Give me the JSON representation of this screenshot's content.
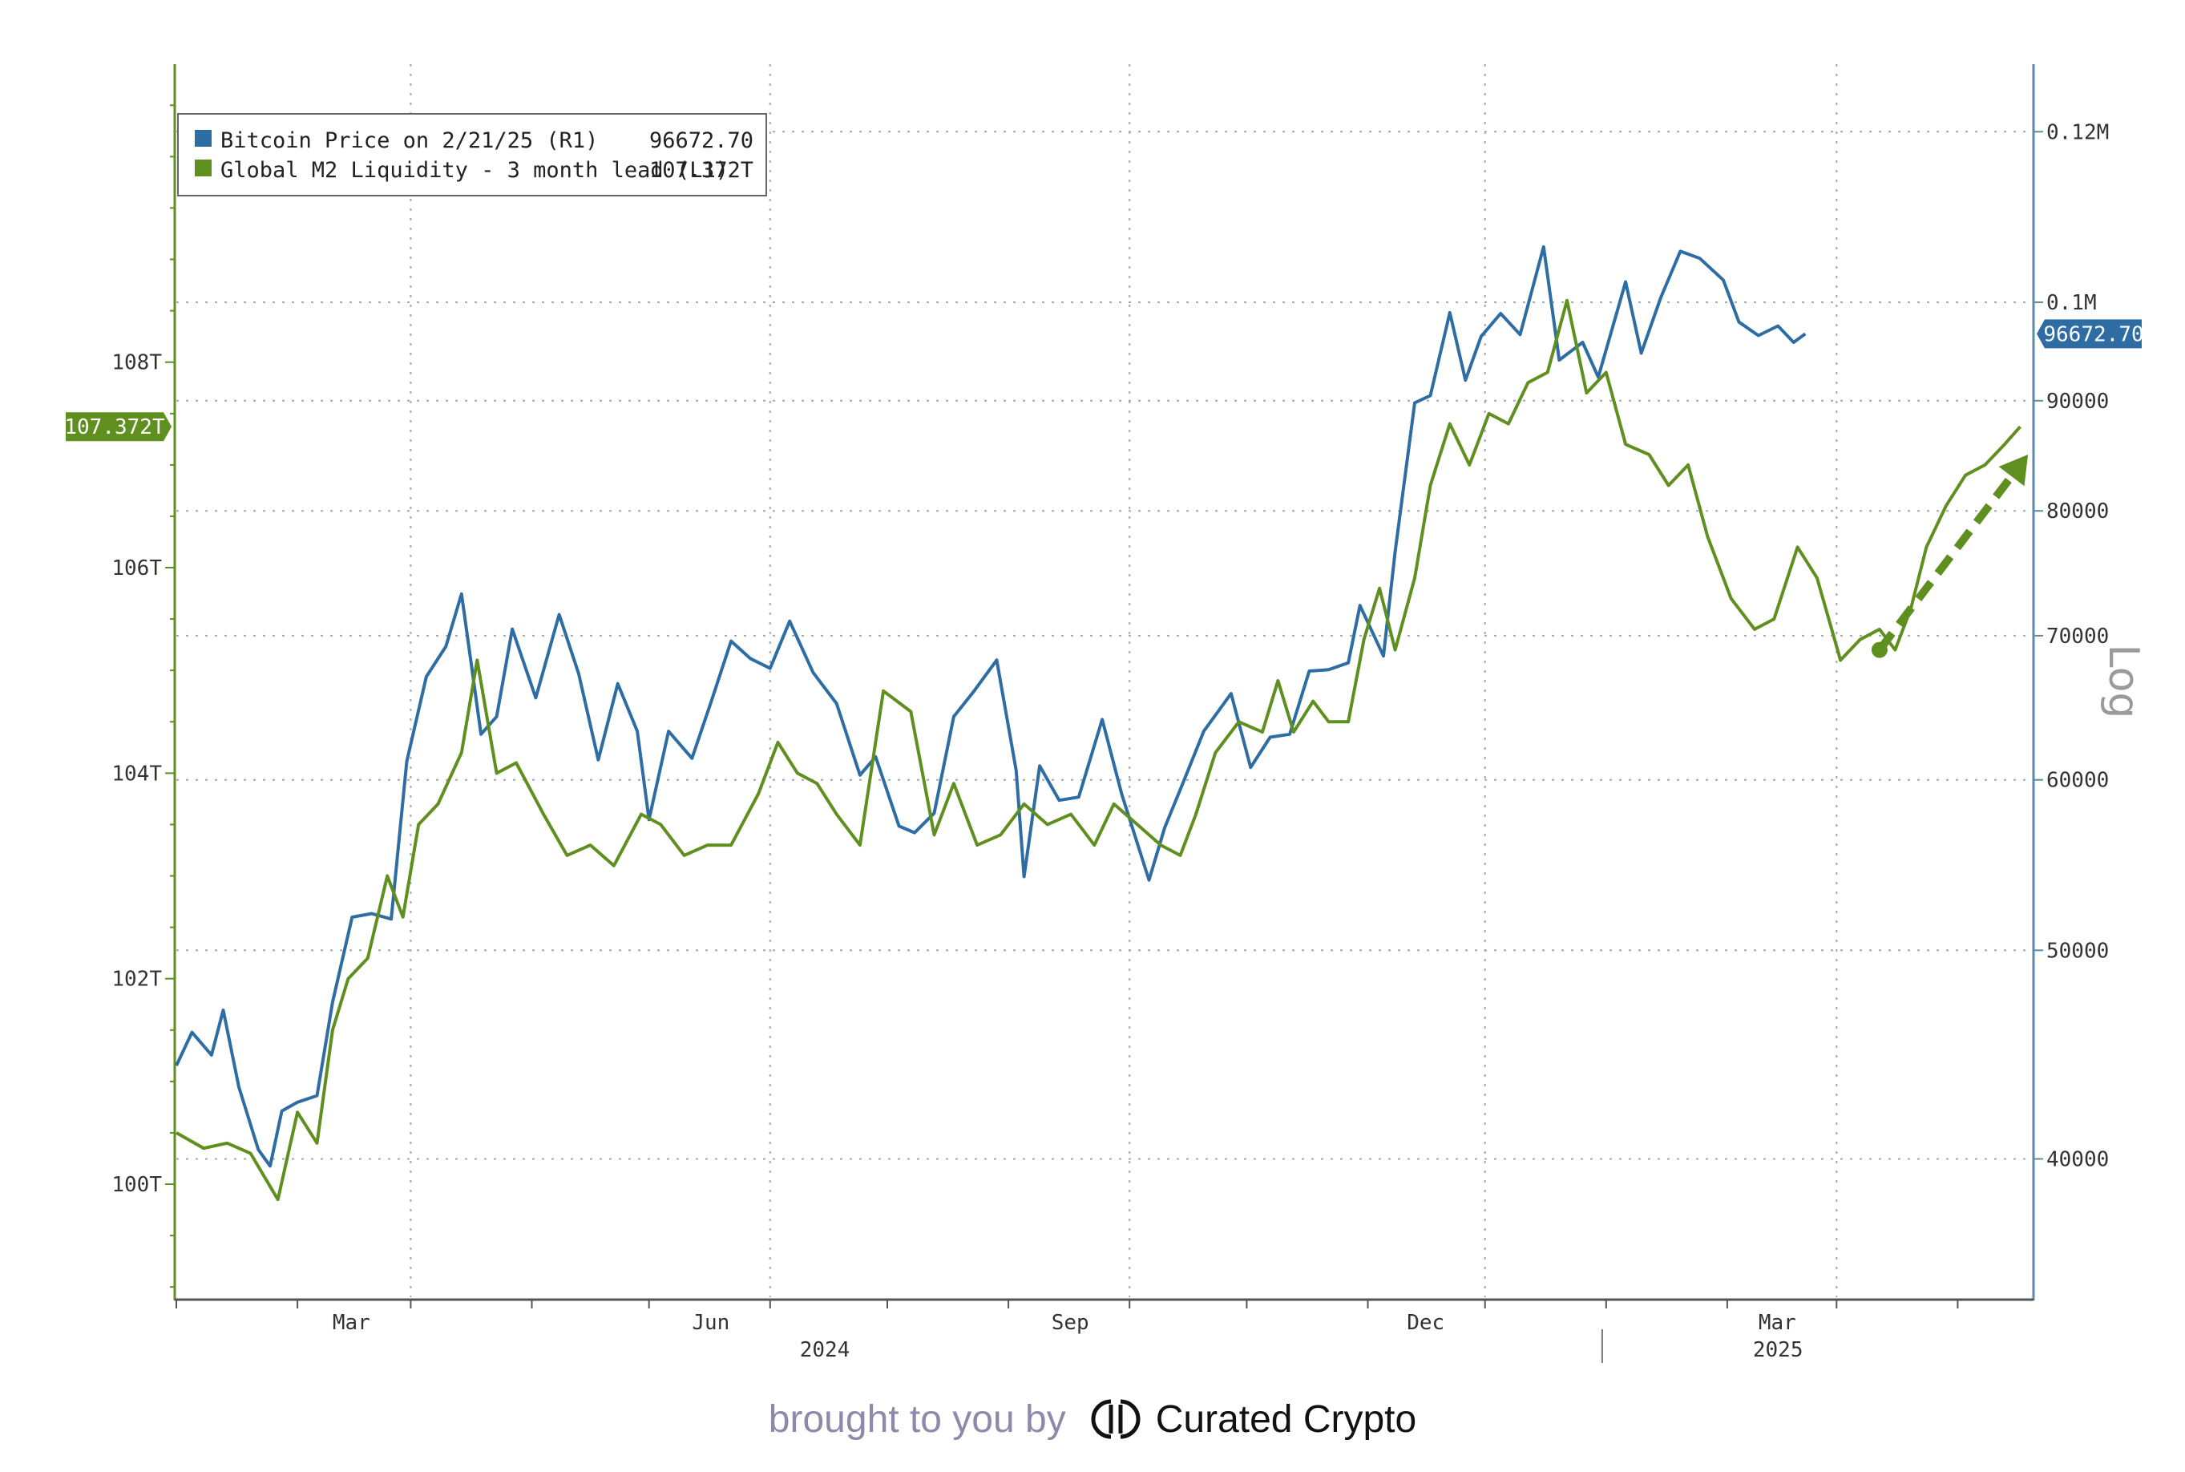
{
  "chart_data": {
    "type": "line",
    "scale_right": "log",
    "grid": true,
    "legend_position": "top-left",
    "legend": [
      {
        "label": "Bitcoin Price on 2/21/25 (R1)",
        "value": "96672.70",
        "color": "#2e6da4"
      },
      {
        "label": "Global M2 Liquidity - 3 month lead (L1)",
        "value": "107.372T",
        "color": "#5f8f1e"
      }
    ],
    "left_axis": {
      "ticks": [
        "100T",
        "102T",
        "104T",
        "106T",
        "108T"
      ],
      "tick_values": [
        100,
        102,
        104,
        106,
        108
      ],
      "range": [
        98.9,
        110.9
      ]
    },
    "right_axis": {
      "label": "Log",
      "ticks": [
        "40000",
        "50000",
        "60000",
        "70000",
        "80000",
        "90000",
        "0.1M",
        "0.12M"
      ],
      "tick_values": [
        40000,
        50000,
        60000,
        70000,
        80000,
        90000,
        100000,
        120000
      ],
      "range": [
        34500,
        129000
      ]
    },
    "x_axis": {
      "range": [
        "2024-01-01",
        "2025-04-20"
      ],
      "month_labels": [
        {
          "label": "Mar",
          "date": "2024-03-01"
        },
        {
          "label": "Jun",
          "date": "2024-06-01"
        },
        {
          "label": "Sep",
          "date": "2024-09-01"
        },
        {
          "label": "Dec",
          "date": "2024-12-01"
        },
        {
          "label": "Mar",
          "date": "2025-03-01"
        }
      ],
      "year_labels": [
        {
          "label": "2024",
          "date": "2024-06-15"
        },
        {
          "label": "2025",
          "date": "2025-02-14"
        }
      ],
      "year_divider": "2024-12-31"
    },
    "last_value_labels": {
      "left": "107.372T",
      "right": "96672.70"
    },
    "series": [
      {
        "name": "Bitcoin Price on 2/21/25 (R1)",
        "axis": "right",
        "color": "#2e6da4",
        "points": [
          [
            "2024-01-01",
            44200
          ],
          [
            "2024-01-05",
            45800
          ],
          [
            "2024-01-10",
            44700
          ],
          [
            "2024-01-13",
            46900
          ],
          [
            "2024-01-17",
            43200
          ],
          [
            "2024-01-22",
            40400
          ],
          [
            "2024-01-25",
            39700
          ],
          [
            "2024-01-28",
            42100
          ],
          [
            "2024-02-01",
            42500
          ],
          [
            "2024-02-06",
            42800
          ],
          [
            "2024-02-10",
            47300
          ],
          [
            "2024-02-15",
            51800
          ],
          [
            "2024-02-20",
            52000
          ],
          [
            "2024-02-25",
            51700
          ],
          [
            "2024-02-29",
            61200
          ],
          [
            "2024-03-05",
            67000
          ],
          [
            "2024-03-10",
            69200
          ],
          [
            "2024-03-14",
            73200
          ],
          [
            "2024-03-19",
            63000
          ],
          [
            "2024-03-23",
            64200
          ],
          [
            "2024-03-27",
            70500
          ],
          [
            "2024-04-02",
            65500
          ],
          [
            "2024-04-08",
            71600
          ],
          [
            "2024-04-13",
            67200
          ],
          [
            "2024-04-18",
            61300
          ],
          [
            "2024-04-23",
            66500
          ],
          [
            "2024-04-28",
            63200
          ],
          [
            "2024-05-01",
            57500
          ],
          [
            "2024-05-06",
            63200
          ],
          [
            "2024-05-12",
            61400
          ],
          [
            "2024-05-17",
            65300
          ],
          [
            "2024-05-22",
            69600
          ],
          [
            "2024-05-27",
            68300
          ],
          [
            "2024-06-01",
            67600
          ],
          [
            "2024-06-06",
            71100
          ],
          [
            "2024-06-12",
            67300
          ],
          [
            "2024-06-18",
            65100
          ],
          [
            "2024-06-24",
            60300
          ],
          [
            "2024-06-28",
            61500
          ],
          [
            "2024-07-04",
            57100
          ],
          [
            "2024-07-08",
            56700
          ],
          [
            "2024-07-13",
            57900
          ],
          [
            "2024-07-18",
            64200
          ],
          [
            "2024-07-23",
            65900
          ],
          [
            "2024-07-29",
            68200
          ],
          [
            "2024-08-03",
            60600
          ],
          [
            "2024-08-05",
            54100
          ],
          [
            "2024-08-09",
            60900
          ],
          [
            "2024-08-14",
            58700
          ],
          [
            "2024-08-19",
            58900
          ],
          [
            "2024-08-25",
            64000
          ],
          [
            "2024-08-30",
            59100
          ],
          [
            "2024-09-06",
            53900
          ],
          [
            "2024-09-10",
            57000
          ],
          [
            "2024-09-15",
            60000
          ],
          [
            "2024-09-20",
            63200
          ],
          [
            "2024-09-27",
            65800
          ],
          [
            "2024-10-02",
            60800
          ],
          [
            "2024-10-07",
            62800
          ],
          [
            "2024-10-12",
            63000
          ],
          [
            "2024-10-17",
            67400
          ],
          [
            "2024-10-22",
            67500
          ],
          [
            "2024-10-27",
            68000
          ],
          [
            "2024-10-30",
            72300
          ],
          [
            "2024-11-05",
            68500
          ],
          [
            "2024-11-08",
            76600
          ],
          [
            "2024-11-13",
            89800
          ],
          [
            "2024-11-17",
            90500
          ],
          [
            "2024-11-22",
            98900
          ],
          [
            "2024-11-26",
            92000
          ],
          [
            "2024-11-30",
            96400
          ],
          [
            "2024-12-05",
            98800
          ],
          [
            "2024-12-10",
            96600
          ],
          [
            "2024-12-16",
            106100
          ],
          [
            "2024-12-20",
            94000
          ],
          [
            "2024-12-26",
            95800
          ],
          [
            "2024-12-30",
            92300
          ],
          [
            "2025-01-06",
            102200
          ],
          [
            "2025-01-10",
            94700
          ],
          [
            "2025-01-15",
            100500
          ],
          [
            "2025-01-20",
            105600
          ],
          [
            "2025-01-25",
            104800
          ],
          [
            "2025-01-31",
            102400
          ],
          [
            "2025-02-04",
            97900
          ],
          [
            "2025-02-09",
            96500
          ],
          [
            "2025-02-14",
            97500
          ],
          [
            "2025-02-18",
            95800
          ],
          [
            "2025-02-21",
            96672.7
          ]
        ]
      },
      {
        "name": "Global M2 Liquidity - 3 month lead (L1)",
        "axis": "left",
        "color": "#5f8f1e",
        "points": [
          [
            "2024-01-01",
            100.5
          ],
          [
            "2024-01-08",
            100.35
          ],
          [
            "2024-01-14",
            100.4
          ],
          [
            "2024-01-20",
            100.3
          ],
          [
            "2024-01-27",
            99.85
          ],
          [
            "2024-02-01",
            100.7
          ],
          [
            "2024-02-06",
            100.4
          ],
          [
            "2024-02-10",
            101.5
          ],
          [
            "2024-02-14",
            102.0
          ],
          [
            "2024-02-19",
            102.2
          ],
          [
            "2024-02-24",
            103.0
          ],
          [
            "2024-02-28",
            102.6
          ],
          [
            "2024-03-03",
            103.5
          ],
          [
            "2024-03-08",
            103.7
          ],
          [
            "2024-03-14",
            104.2
          ],
          [
            "2024-03-18",
            105.1
          ],
          [
            "2024-03-23",
            104.0
          ],
          [
            "2024-03-28",
            104.1
          ],
          [
            "2024-04-04",
            103.6
          ],
          [
            "2024-04-10",
            103.2
          ],
          [
            "2024-04-16",
            103.3
          ],
          [
            "2024-04-22",
            103.1
          ],
          [
            "2024-04-29",
            103.6
          ],
          [
            "2024-05-04",
            103.5
          ],
          [
            "2024-05-10",
            103.2
          ],
          [
            "2024-05-16",
            103.3
          ],
          [
            "2024-05-22",
            103.3
          ],
          [
            "2024-05-29",
            103.8
          ],
          [
            "2024-06-03",
            104.3
          ],
          [
            "2024-06-08",
            104.0
          ],
          [
            "2024-06-13",
            103.9
          ],
          [
            "2024-06-18",
            103.6
          ],
          [
            "2024-06-24",
            103.3
          ],
          [
            "2024-06-30",
            104.8
          ],
          [
            "2024-07-07",
            104.6
          ],
          [
            "2024-07-13",
            103.4
          ],
          [
            "2024-07-18",
            103.9
          ],
          [
            "2024-07-24",
            103.3
          ],
          [
            "2024-07-30",
            103.4
          ],
          [
            "2024-08-05",
            103.7
          ],
          [
            "2024-08-11",
            103.5
          ],
          [
            "2024-08-17",
            103.6
          ],
          [
            "2024-08-23",
            103.3
          ],
          [
            "2024-08-28",
            103.7
          ],
          [
            "2024-09-03",
            103.5
          ],
          [
            "2024-09-09",
            103.3
          ],
          [
            "2024-09-14",
            103.2
          ],
          [
            "2024-09-18",
            103.6
          ],
          [
            "2024-09-23",
            104.2
          ],
          [
            "2024-09-29",
            104.5
          ],
          [
            "2024-10-05",
            104.4
          ],
          [
            "2024-10-09",
            104.9
          ],
          [
            "2024-10-13",
            104.4
          ],
          [
            "2024-10-18",
            104.7
          ],
          [
            "2024-10-22",
            104.5
          ],
          [
            "2024-10-27",
            104.5
          ],
          [
            "2024-10-31",
            105.3
          ],
          [
            "2024-11-04",
            105.8
          ],
          [
            "2024-11-08",
            105.2
          ],
          [
            "2024-11-13",
            105.9
          ],
          [
            "2024-11-17",
            106.8
          ],
          [
            "2024-11-22",
            107.4
          ],
          [
            "2024-11-27",
            107.0
          ],
          [
            "2024-12-02",
            107.5
          ],
          [
            "2024-12-07",
            107.4
          ],
          [
            "2024-12-12",
            107.8
          ],
          [
            "2024-12-17",
            107.9
          ],
          [
            "2024-12-22",
            108.6
          ],
          [
            "2024-12-27",
            107.7
          ],
          [
            "2025-01-01",
            107.9
          ],
          [
            "2025-01-06",
            107.2
          ],
          [
            "2025-01-12",
            107.1
          ],
          [
            "2025-01-17",
            106.8
          ],
          [
            "2025-01-22",
            107.0
          ],
          [
            "2025-01-27",
            106.3
          ],
          [
            "2025-02-02",
            105.7
          ],
          [
            "2025-02-08",
            105.4
          ],
          [
            "2025-02-13",
            105.5
          ],
          [
            "2025-02-19",
            106.2
          ],
          [
            "2025-02-24",
            105.9
          ],
          [
            "2025-03-02",
            105.1
          ],
          [
            "2025-03-07",
            105.3
          ],
          [
            "2025-03-12",
            105.4
          ],
          [
            "2025-03-16",
            105.2
          ],
          [
            "2025-03-20",
            105.6
          ],
          [
            "2025-03-24",
            106.2
          ],
          [
            "2025-03-29",
            106.6
          ],
          [
            "2025-04-03",
            106.9
          ],
          [
            "2025-04-08",
            107.0
          ],
          [
            "2025-04-13",
            107.2
          ],
          [
            "2025-04-17",
            107.372
          ]
        ]
      }
    ],
    "annotation": {
      "type": "dashed-arrow",
      "color": "#5f8f1e",
      "from": [
        "2025-03-12",
        105.2
      ],
      "to": [
        "2025-04-19",
        107.1
      ]
    }
  },
  "footer": {
    "prefix": "brought to you by",
    "brand_name": "Curated Crypto"
  }
}
